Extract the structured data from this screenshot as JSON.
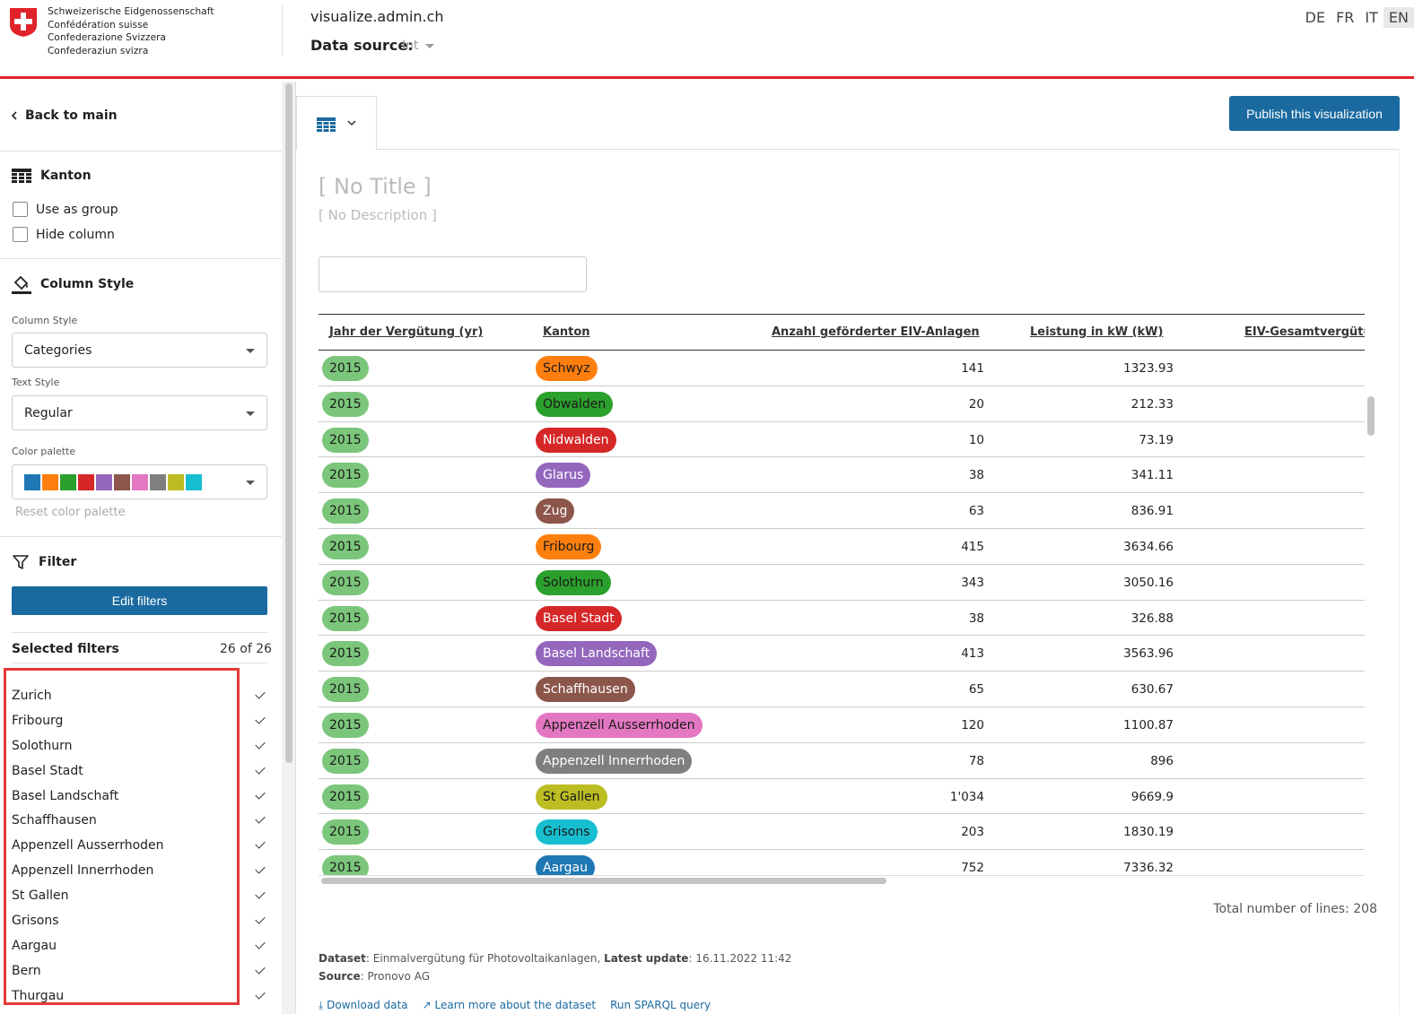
{
  "header": {
    "logo_lines": [
      "Schweizerische Eidgenossenschaft",
      "Confédération suisse",
      "Confederazione Svizzera",
      "Confederaziun svizra"
    ],
    "site_title": "visualize.admin.ch",
    "data_source_label": "Data source:",
    "data_source_value": "Int",
    "languages": [
      "DE",
      "FR",
      "IT",
      "EN"
    ],
    "active_language": "EN"
  },
  "sidebar": {
    "back_label": "Back to main",
    "column_section_title": "Kanton",
    "use_as_group": "Use as group",
    "hide_column": "Hide column",
    "column_style_title": "Column Style",
    "column_style_label": "Column Style",
    "column_style_value": "Categories",
    "text_style_label": "Text Style",
    "text_style_value": "Regular",
    "color_palette_label": "Color palette",
    "palette_colors": [
      "#1f77b4",
      "#ff7f0e",
      "#2ca02c",
      "#d62728",
      "#9467bd",
      "#8c564b",
      "#e377c2",
      "#7f7f7f",
      "#bcbd22",
      "#17becf"
    ],
    "reset_palette": "Reset color palette",
    "filter_title": "Filter",
    "edit_filters": "Edit filters",
    "selected_filters_label": "Selected filters",
    "selected_filters_count": "26 of 26",
    "filters": [
      "Zurich",
      "Fribourg",
      "Solothurn",
      "Basel Stadt",
      "Basel Landschaft",
      "Schaffhausen",
      "Appenzell Ausserrhoden",
      "Appenzell Innerrhoden",
      "St Gallen",
      "Grisons",
      "Aargau",
      "Bern",
      "Thurgau"
    ]
  },
  "main": {
    "publish_label": "Publish this visualization",
    "title_placeholder": "[ No Title ]",
    "description_placeholder": "[ No Description ]",
    "columns": [
      "Jahr der Vergütung (yr)",
      "Kanton",
      "Anzahl geförderter EIV-Anlagen",
      "Leistung in kW (kW)",
      "EIV-Gesamtvergütung"
    ],
    "rows": [
      {
        "year": "2015",
        "kanton": "Schwyz",
        "color": "#ff7f0e",
        "text": "#1a1a1a",
        "count": "141",
        "kw": "1323.93"
      },
      {
        "year": "2015",
        "kanton": "Obwalden",
        "color": "#2ca02c",
        "text": "#1a1a1a",
        "count": "20",
        "kw": "212.33"
      },
      {
        "year": "2015",
        "kanton": "Nidwalden",
        "color": "#d62728",
        "text": "#ffffff",
        "count": "10",
        "kw": "73.19"
      },
      {
        "year": "2015",
        "kanton": "Glarus",
        "color": "#9467bd",
        "text": "#ffffff",
        "count": "38",
        "kw": "341.11"
      },
      {
        "year": "2015",
        "kanton": "Zug",
        "color": "#8c564b",
        "text": "#ffffff",
        "count": "63",
        "kw": "836.91"
      },
      {
        "year": "2015",
        "kanton": "Fribourg",
        "color": "#ff7f0e",
        "text": "#1a1a1a",
        "count": "415",
        "kw": "3634.66"
      },
      {
        "year": "2015",
        "kanton": "Solothurn",
        "color": "#2ca02c",
        "text": "#1a1a1a",
        "count": "343",
        "kw": "3050.16"
      },
      {
        "year": "2015",
        "kanton": "Basel Stadt",
        "color": "#d62728",
        "text": "#ffffff",
        "count": "38",
        "kw": "326.88"
      },
      {
        "year": "2015",
        "kanton": "Basel Landschaft",
        "color": "#9467bd",
        "text": "#ffffff",
        "count": "413",
        "kw": "3563.96"
      },
      {
        "year": "2015",
        "kanton": "Schaffhausen",
        "color": "#8c564b",
        "text": "#ffffff",
        "count": "65",
        "kw": "630.67"
      },
      {
        "year": "2015",
        "kanton": "Appenzell Ausserrhoden",
        "color": "#e377c2",
        "text": "#1a1a1a",
        "count": "120",
        "kw": "1100.87"
      },
      {
        "year": "2015",
        "kanton": "Appenzell Innerrhoden",
        "color": "#7f7f7f",
        "text": "#ffffff",
        "count": "78",
        "kw": "896"
      },
      {
        "year": "2015",
        "kanton": "St Gallen",
        "color": "#bcbd22",
        "text": "#1a1a1a",
        "count": "1'034",
        "kw": "9669.9"
      },
      {
        "year": "2015",
        "kanton": "Grisons",
        "color": "#17becf",
        "text": "#1a1a1a",
        "count": "203",
        "kw": "1830.19"
      },
      {
        "year": "2015",
        "kanton": "Aargau",
        "color": "#1f77b4",
        "text": "#ffffff",
        "count": "752",
        "kw": "7336.32"
      }
    ],
    "total_lines": "Total number of lines: 208",
    "dataset_label": "Dataset",
    "dataset_value": "Einmalvergütung für Photovoltaikanlagen",
    "latest_update_label": "Latest update",
    "latest_update_value": "16.11.2022 11:42",
    "source_label": "Source",
    "source_value": "Pronovo AG",
    "download_label": "Download data",
    "learn_more_label": "Learn more about the dataset",
    "sparql_label": "Run SPARQL query"
  }
}
